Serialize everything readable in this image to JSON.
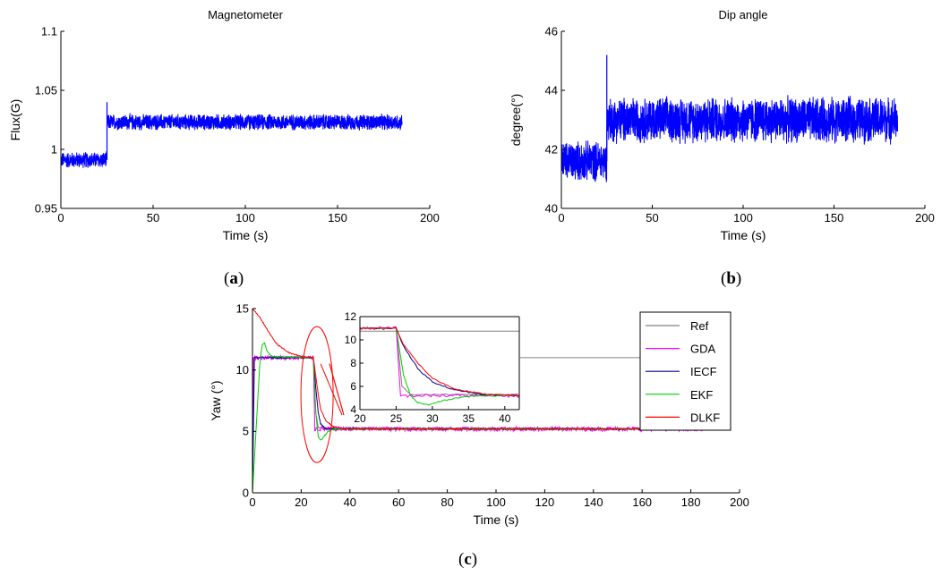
{
  "colors": {
    "blue": "#0000ff",
    "ref": "#808080",
    "gda": "#ff00ff",
    "iecf": "#00008b",
    "ekf": "#00cc00",
    "dlkf": "#ff0000",
    "annotation": "#ff0000",
    "axis": "#000000"
  },
  "captions": {
    "a": "a",
    "b": "b",
    "c": "c"
  },
  "chart_data": [
    {
      "id": "a",
      "type": "line",
      "title": "Magnetometer",
      "xlabel": "Time (s)",
      "ylabel": "Flux(G)",
      "xlim": [
        0,
        200
      ],
      "ylim": [
        0.95,
        1.1
      ],
      "xticks": [
        0,
        50,
        100,
        150,
        200
      ],
      "yticks": [
        0.95,
        1,
        1.05,
        1.1
      ],
      "ytick_labels": [
        "0.95",
        "1",
        "1.05",
        "1.1"
      ],
      "noisy_segments": [
        {
          "x": [
            0,
            25
          ],
          "center": 0.991,
          "band": [
            0.983,
            0.998
          ]
        },
        {
          "x": [
            25,
            185
          ],
          "center": 1.023,
          "band": [
            1.016,
            1.031
          ]
        }
      ],
      "spike": {
        "x": 25,
        "y": 1.04
      },
      "grid": false
    },
    {
      "id": "b",
      "type": "line",
      "title": "Dip angle",
      "xlabel": "Time (s)",
      "ylabel": "degree(°)",
      "xlim": [
        0,
        200
      ],
      "ylim": [
        40,
        46
      ],
      "xticks": [
        0,
        50,
        100,
        150,
        200
      ],
      "yticks": [
        40,
        42,
        44,
        46
      ],
      "ytick_labels": [
        "40",
        "42",
        "44",
        "46"
      ],
      "noisy_segments": [
        {
          "x": [
            0,
            25
          ],
          "center": 41.6,
          "band": [
            40.9,
            42.4
          ]
        },
        {
          "x": [
            25,
            185
          ],
          "center": 43.0,
          "band": [
            42.1,
            43.8
          ]
        }
      ],
      "spike": {
        "x": 25,
        "y": 45.2
      },
      "grid": false
    },
    {
      "id": "c",
      "type": "line",
      "xlabel": "Time (s)",
      "ylabel": "Yaw (°)",
      "xlim": [
        0,
        200
      ],
      "ylim": [
        0,
        15
      ],
      "xticks": [
        0,
        20,
        40,
        60,
        80,
        100,
        120,
        140,
        160,
        180,
        200
      ],
      "yticks": [
        0,
        5,
        10,
        15
      ],
      "ytick_labels": [
        "0",
        "5",
        "10",
        "15"
      ],
      "legend_position": "top-right",
      "series": [
        {
          "name": "Ref",
          "color_key": "ref",
          "points": [
            [
              0,
              0
            ],
            [
              0.5,
              11
            ],
            [
              25,
              11
            ],
            [
              26,
              6.5
            ],
            [
              27,
              5.3
            ],
            [
              185,
              5.2
            ]
          ]
        },
        {
          "name": "GDA",
          "color_key": "gda",
          "points": [
            [
              0,
              0
            ],
            [
              0.3,
              11
            ],
            [
              25,
              11
            ],
            [
              25.6,
              5.2
            ],
            [
              185,
              5.2
            ]
          ]
        },
        {
          "name": "IECF",
          "color_key": "iecf",
          "points": [
            [
              0,
              0
            ],
            [
              0.8,
              11
            ],
            [
              25,
              11
            ],
            [
              26,
              8.5
            ],
            [
              27,
              6.5
            ],
            [
              28,
              5.6
            ],
            [
              30,
              5.2
            ],
            [
              185,
              5.2
            ]
          ]
        },
        {
          "name": "EKF",
          "color_key": "ekf",
          "points": [
            [
              0,
              0
            ],
            [
              2,
              7
            ],
            [
              3,
              10.5
            ],
            [
              4,
              12.1
            ],
            [
              5,
              12.2
            ],
            [
              6,
              11.5
            ],
            [
              8,
              11.1
            ],
            [
              25,
              11
            ],
            [
              26,
              6.5
            ],
            [
              27,
              4.6
            ],
            [
              28,
              4.3
            ],
            [
              29,
              4.5
            ],
            [
              31,
              5.0
            ],
            [
              34,
              5.2
            ],
            [
              185,
              5.2
            ]
          ]
        },
        {
          "name": "DLKF",
          "color_key": "dlkf",
          "points": [
            [
              0,
              15
            ],
            [
              3,
              14.3
            ],
            [
              6,
              13.3
            ],
            [
              10,
              12.1
            ],
            [
              15,
              11.4
            ],
            [
              20,
              11.1
            ],
            [
              25,
              11
            ],
            [
              26,
              9.5
            ],
            [
              27,
              8
            ],
            [
              28,
              6.8
            ],
            [
              30,
              5.9
            ],
            [
              33,
              5.4
            ],
            [
              37,
              5.2
            ],
            [
              185,
              5.2
            ]
          ]
        }
      ],
      "inset": {
        "xlim": [
          20,
          42
        ],
        "ylim": [
          4,
          12
        ],
        "xticks": [
          20,
          25,
          30,
          35,
          40
        ],
        "yticks": [
          4,
          6,
          8,
          10,
          12
        ],
        "ytick_labels": [
          "4",
          "6",
          "8",
          "10",
          "12"
        ],
        "ref_level": 10.75
      },
      "grid": false
    }
  ]
}
